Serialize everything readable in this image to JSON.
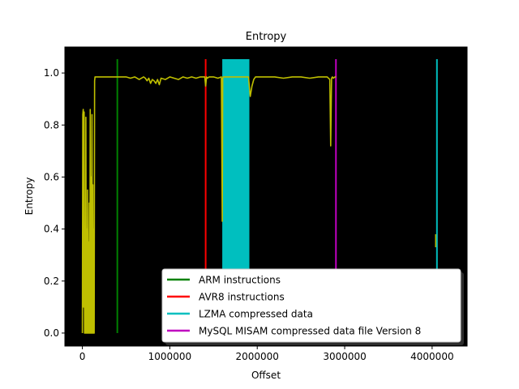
{
  "chart_data": {
    "type": "line",
    "title": "Entropy",
    "xlabel": "Offset",
    "ylabel": "Entropy",
    "xlim": [
      -200000,
      4400000
    ],
    "ylim": [
      -0.05,
      1.1
    ],
    "xticks": [
      0,
      1000000,
      2000000,
      3000000,
      4000000
    ],
    "yticks": [
      0.0,
      0.2,
      0.4,
      0.6,
      0.8,
      1.0
    ],
    "xtick_labels": [
      "0",
      "1000000",
      "2000000",
      "3000000",
      "4000000"
    ],
    "ytick_labels": [
      "0.0",
      "0.2",
      "0.4",
      "0.6",
      "0.8",
      "1.0"
    ],
    "background_color": "#000000",
    "grid": false,
    "legend_position": "lower-right",
    "entropy_series": {
      "color": "#bfbf00",
      "x": [
        0,
        5000,
        10000,
        15000,
        20000,
        25000,
        30000,
        35000,
        40000,
        45000,
        50000,
        55000,
        60000,
        65000,
        70000,
        75000,
        80000,
        85000,
        90000,
        95000,
        100000,
        105000,
        110000,
        115000,
        120000,
        125000,
        130000,
        135000,
        140000,
        145000,
        150000,
        155000,
        160000,
        170000,
        200000,
        300000,
        400000,
        500000,
        550000,
        600000,
        650000,
        700000,
        720000,
        740000,
        760000,
        780000,
        800000,
        820000,
        840000,
        860000,
        880000,
        900000,
        950000,
        1000000,
        1050000,
        1100000,
        1150000,
        1200000,
        1250000,
        1300000,
        1350000,
        1400000,
        1410000,
        1420000,
        1430000,
        1450000,
        1500000,
        1550000,
        1590000,
        1600000,
        1605000,
        1610000,
        1900000,
        1920000,
        1940000,
        1960000,
        1980000,
        2000000,
        2100000,
        2200000,
        2300000,
        2400000,
        2500000,
        2600000,
        2700000,
        2800000,
        2830000,
        2840000,
        2850000,
        2860000,
        2870000,
        2890000,
        2900000
      ],
      "y": [
        0.0,
        0.84,
        0.86,
        0.1,
        0.85,
        0.0,
        0.2,
        0.0,
        0.83,
        0.0,
        0.4,
        0.0,
        0.55,
        0.0,
        0.35,
        0.0,
        0.5,
        0.0,
        0.86,
        0.0,
        0.6,
        0.0,
        0.84,
        0.0,
        0.57,
        0.0,
        0.4,
        0.0,
        0.97,
        0.985,
        0.985,
        0.985,
        0.985,
        0.985,
        0.985,
        0.985,
        0.985,
        0.985,
        0.98,
        0.985,
        0.975,
        0.985,
        0.98,
        0.97,
        0.98,
        0.96,
        0.975,
        0.97,
        0.96,
        0.975,
        0.955,
        0.98,
        0.975,
        0.985,
        0.98,
        0.975,
        0.985,
        0.98,
        0.985,
        0.98,
        0.985,
        0.985,
        0.95,
        0.985,
        0.98,
        0.985,
        0.985,
        0.98,
        0.985,
        0.43,
        0.98,
        0.985,
        0.985,
        0.91,
        0.95,
        0.975,
        0.985,
        0.985,
        0.985,
        0.985,
        0.98,
        0.985,
        0.985,
        0.98,
        0.985,
        0.985,
        0.975,
        0.72,
        0.98,
        0.985,
        0.98,
        0.985,
        0.985
      ]
    },
    "vertical_lines": [
      {
        "name": "ARM instructions",
        "color": "#008000",
        "x": [
          400000
        ]
      },
      {
        "name": "AVR8 instructions",
        "color": "#ff0000",
        "x": [
          1410000
        ]
      },
      {
        "name": "LZMA compressed data",
        "color": "#00bfbf",
        "x": [
          4055000
        ],
        "band": [
          1600000,
          1910000
        ]
      },
      {
        "name": "MySQL MISAM compressed data file Version 8",
        "color": "#bf00bf",
        "x": [
          2900000
        ]
      }
    ]
  }
}
